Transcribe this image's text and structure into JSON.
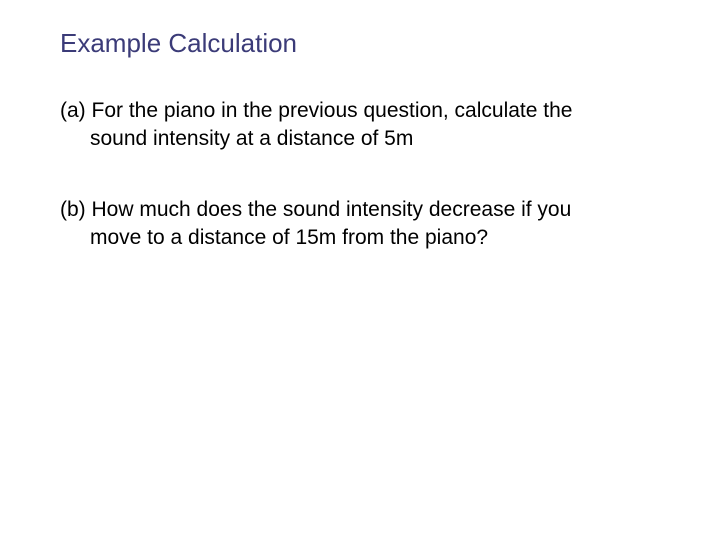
{
  "title": {
    "text": "Example Calculation",
    "color": "#3b3b78",
    "fontsize": 26
  },
  "body": {
    "color": "#000000",
    "fontsize": 21
  },
  "questions": [
    {
      "label": "(a)",
      "line1": "For the piano in the previous question, calculate the",
      "line2": "sound intensity at a distance of 5m"
    },
    {
      "label": "(b)",
      "line1": "How much does the sound intensity decrease if you",
      "line2": "move to a distance of 15m from the piano?"
    }
  ]
}
